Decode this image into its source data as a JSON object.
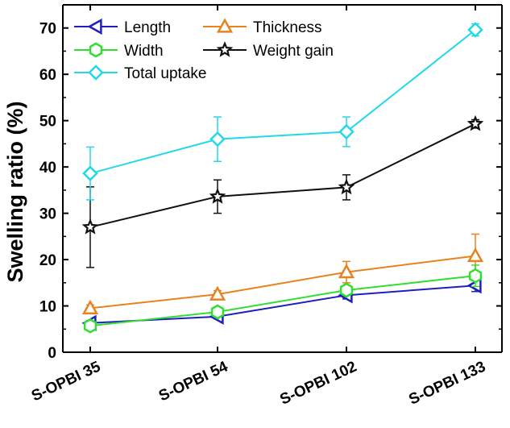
{
  "chart_data": {
    "type": "line",
    "title": "",
    "xlabel": "",
    "ylabel": "Swelling ratio (%)",
    "ylim": [
      0,
      75
    ],
    "yticks": [
      0,
      10,
      20,
      30,
      40,
      50,
      60,
      70
    ],
    "categories": [
      "S-OPBI 35",
      "S-OPBI 54",
      "S-OPBI 102",
      "S-OPBI 133"
    ],
    "legend_position": "top-left",
    "series": [
      {
        "name": "Length",
        "color": "#1f1fbf",
        "marker": "triangle-left",
        "values": [
          6.3,
          7.7,
          12.3,
          14.4
        ],
        "errors": [
          0.5,
          0.5,
          0.8,
          1.3
        ]
      },
      {
        "name": "Thickness",
        "color": "#e8821e",
        "marker": "triangle-up",
        "values": [
          9.5,
          12.5,
          17.3,
          20.8
        ],
        "errors": [
          0.7,
          0.8,
          2.3,
          4.7
        ]
      },
      {
        "name": "Width",
        "color": "#33dd33",
        "marker": "hexagon",
        "values": [
          5.7,
          8.7,
          13.4,
          16.5
        ],
        "errors": [
          0.5,
          0.6,
          0.9,
          2.3
        ]
      },
      {
        "name": "Weight gain",
        "color": "#111111",
        "marker": "star",
        "values": [
          27.0,
          33.6,
          35.6,
          49.3
        ],
        "errors": [
          8.7,
          3.6,
          2.7,
          0.9
        ]
      },
      {
        "name": "Total uptake",
        "color": "#22d8ea",
        "marker": "diamond",
        "values": [
          38.6,
          46.0,
          47.6,
          69.6
        ],
        "errors": [
          5.7,
          4.8,
          3.2,
          1.3
        ]
      }
    ]
  }
}
